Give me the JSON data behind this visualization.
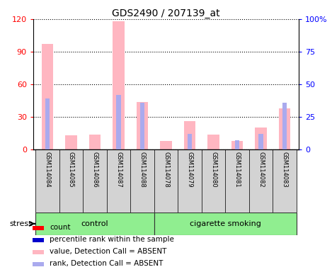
{
  "title": "GDS2490 / 207139_at",
  "samples": [
    "GSM114084",
    "GSM114085",
    "GSM114086",
    "GSM114087",
    "GSM114088",
    "GSM114078",
    "GSM114079",
    "GSM114080",
    "GSM114081",
    "GSM114082",
    "GSM114083"
  ],
  "control_count": 5,
  "smoking_count": 6,
  "absent_value": [
    97,
    13,
    14,
    118,
    44,
    8,
    26,
    14,
    8,
    20,
    38
  ],
  "absent_rank": [
    39,
    0,
    0,
    42,
    36,
    0,
    12,
    0,
    7,
    12,
    36
  ],
  "ylim_left": [
    0,
    120
  ],
  "ylim_right": [
    0,
    100
  ],
  "yticks_left": [
    0,
    30,
    60,
    90,
    120
  ],
  "yticks_right": [
    0,
    25,
    50,
    75,
    100
  ],
  "yticklabels_left": [
    "0",
    "30",
    "60",
    "90",
    "120"
  ],
  "yticklabels_right": [
    "0",
    "25",
    "50",
    "75",
    "100%"
  ],
  "color_absent_value": "#FFB6C1",
  "color_absent_rank": "#AAAAEE",
  "color_present_value": "#FF0000",
  "color_present_rank": "#0000CC",
  "value_bar_width": 0.5,
  "rank_bar_width": 0.18,
  "group_label_control": "control",
  "group_label_smoking": "cigarette smoking",
  "stress_label": "stress",
  "legend_items": [
    {
      "label": "count",
      "color": "#FF0000"
    },
    {
      "label": "percentile rank within the sample",
      "color": "#0000CC"
    },
    {
      "label": "value, Detection Call = ABSENT",
      "color": "#FFB6C1"
    },
    {
      "label": "rank, Detection Call = ABSENT",
      "color": "#AAAAEE"
    }
  ],
  "grid_color": "black",
  "grid_linestyle": "dotted",
  "left_tick_color": "red",
  "right_tick_color": "blue",
  "sample_box_color": "#D3D3D3",
  "group_box_color": "#90EE90"
}
